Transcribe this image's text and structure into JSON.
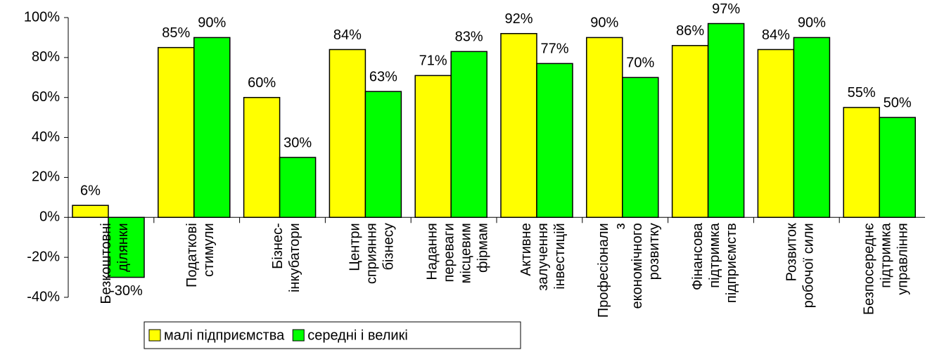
{
  "chart_data": {
    "type": "bar",
    "categories": [
      [
        "Безкоштовні",
        "ділянки"
      ],
      [
        "Податкові",
        "стимули"
      ],
      [
        "Бізнес-",
        "інкубатори"
      ],
      [
        "Центри",
        "сприяння",
        "бізнесу"
      ],
      [
        "Надання",
        "переваги",
        "місцевим",
        "фірмам"
      ],
      [
        "Активне",
        "залучення",
        "інвестицій"
      ],
      [
        "Професіонали",
        "з",
        "економічного",
        "розвитку"
      ],
      [
        "Фінансова",
        "підтримка",
        "підприємств"
      ],
      [
        "Розвиток",
        "робочої сили"
      ],
      [
        "Безпосереднє",
        "підтримка",
        "управління"
      ]
    ],
    "series": [
      {
        "name": "малі підприємства",
        "color": "#ffff00",
        "values": [
          6,
          85,
          60,
          84,
          71,
          92,
          90,
          86,
          84,
          55
        ],
        "value_labels": [
          "6%",
          "85%",
          "60%",
          "84%",
          "71%",
          "92%",
          "90%",
          "86%",
          "84%",
          "55%"
        ]
      },
      {
        "name": "середні і великі",
        "color": "#00ff00",
        "values": [
          -30,
          90,
          30,
          63,
          83,
          77,
          70,
          97,
          90,
          50
        ],
        "value_labels": [
          "-30%",
          "90%",
          "30%",
          "63%",
          "83%",
          "77%",
          "70%",
          "97%",
          "90%",
          "50%"
        ]
      }
    ],
    "ylim": [
      -40,
      100
    ],
    "yticks": [
      {
        "value": -40,
        "label": "-40%"
      },
      {
        "value": -20,
        "label": "-20%"
      },
      {
        "value": 0,
        "label": "0%"
      },
      {
        "value": 20,
        "label": "20%"
      },
      {
        "value": 40,
        "label": "40%"
      },
      {
        "value": 60,
        "label": "60%"
      },
      {
        "value": 80,
        "label": "80%"
      },
      {
        "value": 100,
        "label": "100%"
      }
    ],
    "legend": "bottom"
  }
}
